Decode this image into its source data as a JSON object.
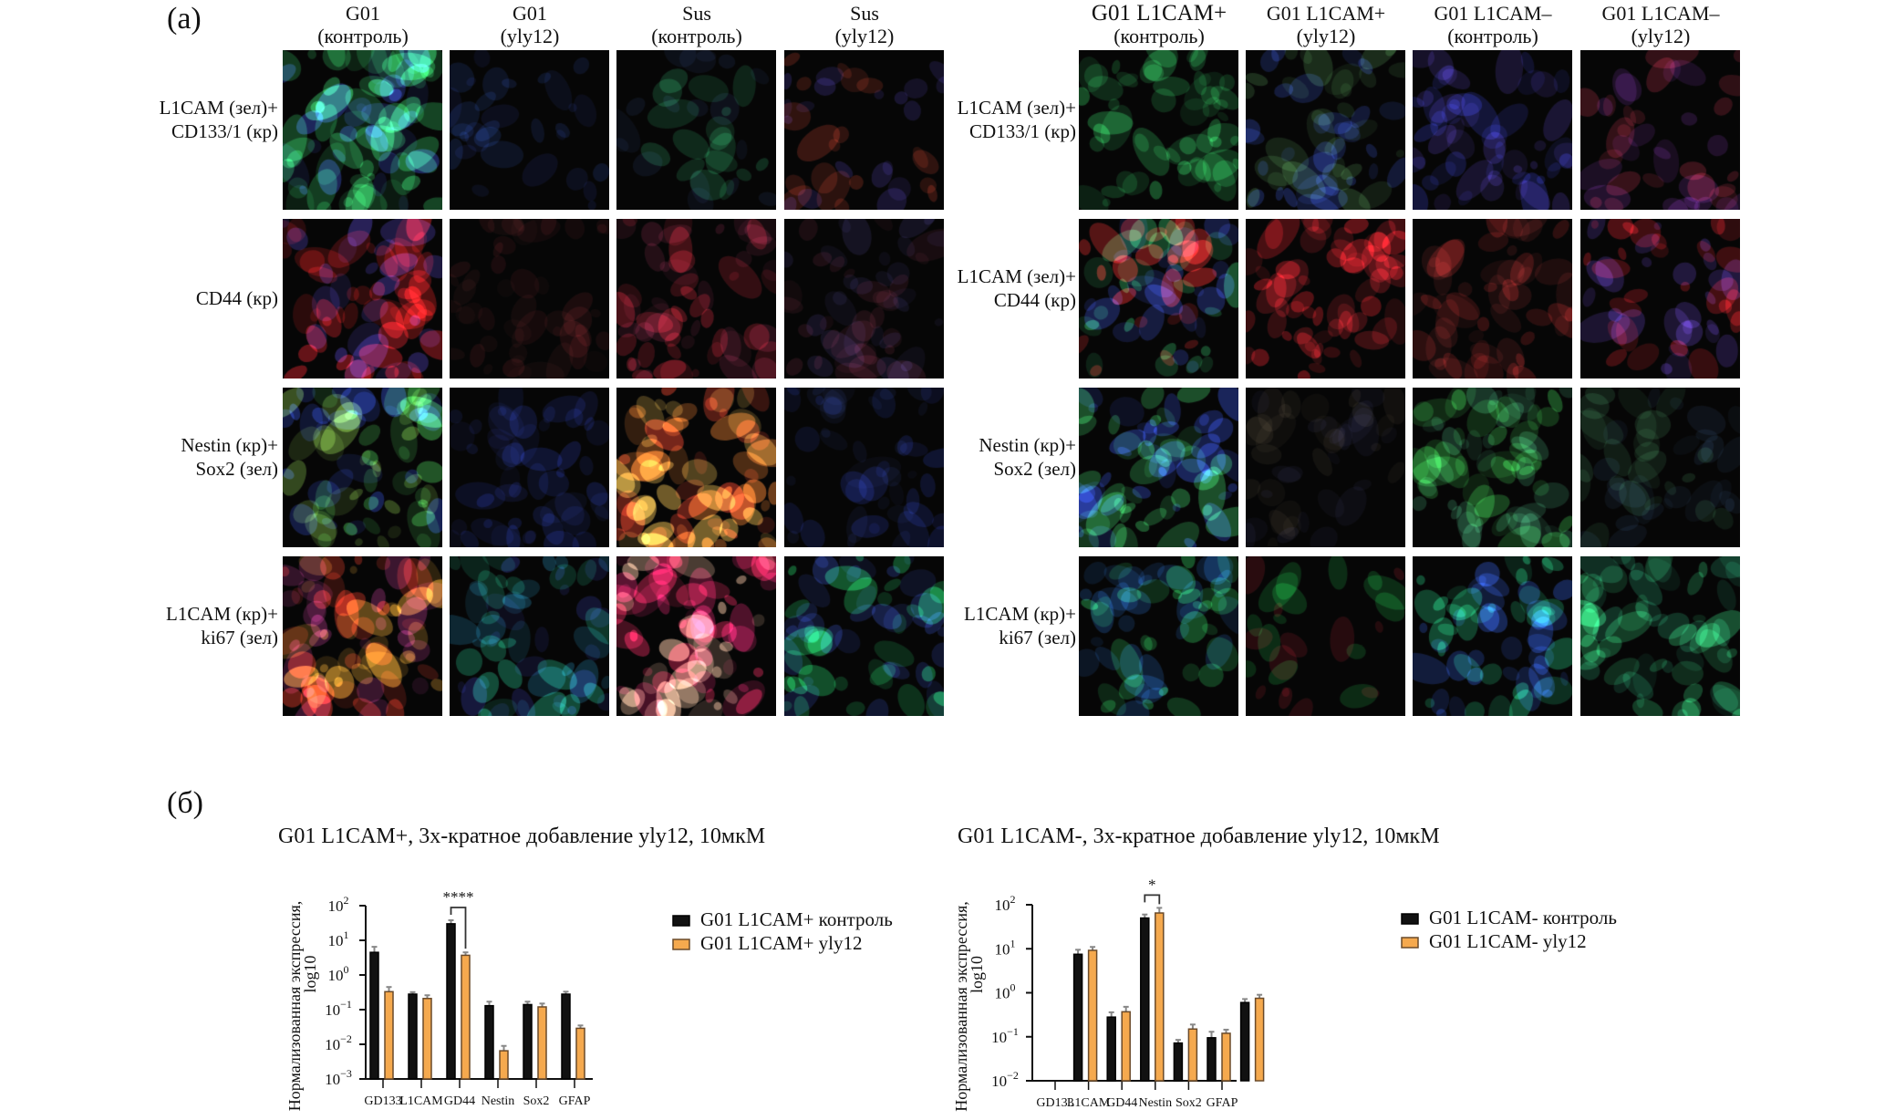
{
  "panel_a": {
    "label": "(а)",
    "left_grid": {
      "columns": [
        {
          "line1": "G01",
          "line2": "(контроль)"
        },
        {
          "line1": "G01",
          "line2": "(yly12)"
        },
        {
          "line1": "Sus",
          "line2": "(контроль)"
        },
        {
          "line1": "Sus",
          "line2": "(yly12)"
        }
      ],
      "rows": [
        {
          "line1": "L1CAM (зел)+",
          "line2": "CD133/1 (кр)"
        },
        {
          "line1": "CD44 (кр)",
          "line2": ""
        },
        {
          "line1": "Nestin (кр)+",
          "line2": "Sox2 (зел)"
        },
        {
          "line1": "L1CAM (кр)+",
          "line2": "ki67 (зел)"
        }
      ],
      "cells": [
        [
          {
            "stains": [
              "#2fae5a",
              "#1e7a3c",
              "#2a3a9a"
            ],
            "density": 0.9
          },
          {
            "stains": [
              "#2a4fb0",
              "#1c2a70"
            ],
            "density": 0.15
          },
          {
            "stains": [
              "#2fae6a",
              "#20305a"
            ],
            "density": 0.2
          },
          {
            "stains": [
              "#c8402a",
              "#4a3aa8"
            ],
            "density": 0.25
          }
        ],
        [
          {
            "stains": [
              "#e0202a",
              "#b01818",
              "#4a3ab0"
            ],
            "density": 0.7
          },
          {
            "stains": [
              "#4a1418",
              "#2a1010"
            ],
            "density": 0.4
          },
          {
            "stains": [
              "#b02030",
              "#5a1a30"
            ],
            "density": 0.55
          },
          {
            "stains": [
              "#4a1a28",
              "#2a2450"
            ],
            "density": 0.5
          }
        ],
        [
          {
            "stains": [
              "#3fae4a",
              "#2840b0",
              "#6a9a3a"
            ],
            "density": 0.8
          },
          {
            "stains": [
              "#1c2a80",
              "#141c50"
            ],
            "density": 0.45
          },
          {
            "stains": [
              "#f08030",
              "#e0402a",
              "#f0c050"
            ],
            "density": 0.8
          },
          {
            "stains": [
              "#1c2a80",
              "#141c40"
            ],
            "density": 0.4
          }
        ],
        [
          {
            "stains": [
              "#c03020",
              "#e0a030",
              "#8a2a6a"
            ],
            "density": 0.85
          },
          {
            "stains": [
              "#20b080",
              "#1a6a8a",
              "#2a3090"
            ],
            "density": 0.6
          },
          {
            "stains": [
              "#f02a60",
              "#f0c0a0",
              "#a01a50"
            ],
            "density": 0.85
          },
          {
            "stains": [
              "#20c060",
              "#2a40a0"
            ],
            "density": 0.6
          }
        ]
      ]
    },
    "right_grid": {
      "columns": [
        {
          "line1": "G01 L1CAM+",
          "line2": "(контроль)"
        },
        {
          "line1": "G01 L1CAM+",
          "line2": "(yly12)"
        },
        {
          "line1": "G01 L1CAM–",
          "line2": "(контроль)"
        },
        {
          "line1": "G01 L1CAM–",
          "line2": "(yly12)"
        }
      ],
      "rows": [
        {
          "line1": "L1CAM (зел)+",
          "line2": "CD133/1 (кр)"
        },
        {
          "line1": "L1CAM (зел)+",
          "line2": "CD44 (кр)"
        },
        {
          "line1": "Nestin (кр)+",
          "line2": "Sox2 (зел)"
        },
        {
          "line1": "L1CAM (кр)+",
          "line2": "ki67 (зел)"
        }
      ],
      "cells": [
        [
          {
            "stains": [
              "#2fbe5a",
              "#1e7a3c"
            ],
            "density": 0.5
          },
          {
            "stains": [
              "#2a40a0",
              "#3a6a3a"
            ],
            "density": 0.55
          },
          {
            "stains": [
              "#2a30a0",
              "#3a2a80"
            ],
            "density": 0.5
          },
          {
            "stains": [
              "#c0304a",
              "#6a2a90"
            ],
            "density": 0.3
          }
        ],
        [
          {
            "stains": [
              "#e02a2a",
              "#30b060",
              "#2a3a9a"
            ],
            "density": 0.7
          },
          {
            "stains": [
              "#e0202a",
              "#901a20"
            ],
            "density": 0.6
          },
          {
            "stains": [
              "#902020",
              "#501818"
            ],
            "density": 0.45
          },
          {
            "stains": [
              "#e0202a",
              "#5a3ab0"
            ],
            "density": 0.45
          }
        ],
        [
          {
            "stains": [
              "#30a050",
              "#2a40b0"
            ],
            "density": 0.75
          },
          {
            "stains": [
              "#302a20",
              "#1a1a30"
            ],
            "density": 0.35
          },
          {
            "stains": [
              "#30a040",
              "#2a6a4a"
            ],
            "density": 0.7
          },
          {
            "stains": [
              "#2a5a3a",
              "#1a2a40"
            ],
            "density": 0.4
          }
        ],
        [
          {
            "stains": [
              "#30d060",
              "#1a4a8a"
            ],
            "density": 0.55
          },
          {
            "stains": [
              "#20d050",
              "#c02030"
            ],
            "density": 0.1
          },
          {
            "stains": [
              "#20b070",
              "#2a50c0"
            ],
            "density": 0.6
          },
          {
            "stains": [
              "#30c070",
              "#1a6a4a"
            ],
            "density": 0.6
          }
        ]
      ]
    }
  },
  "panel_b": {
    "label": "(б)"
  },
  "chart_data": [
    {
      "type": "bar",
      "title": "G01 L1CAM+, 3х-кратное добавление yly12, 10мкМ",
      "ylabel_line1": "Нормализованная экспрессия,",
      "ylabel_line2": "log10",
      "yscale": "log",
      "ylim": [
        0.001,
        100
      ],
      "yticks": [
        "10",
        "10",
        "10",
        "10",
        "10",
        "10"
      ],
      "ytick_exponents": [
        "2",
        "1",
        "0",
        "−1",
        "−2",
        "−3"
      ],
      "categories": [
        "GD133",
        "L1CAM",
        "GD44",
        "Nestin",
        "Sox2",
        "GFAP"
      ],
      "series": [
        {
          "name": "G01 L1CAM+ контроль",
          "color": "#111111",
          "values": [
            4.5,
            0.28,
            30,
            0.13,
            0.14,
            0.28
          ],
          "err_top": [
            6.5,
            0.32,
            38,
            0.17,
            0.17,
            0.33
          ]
        },
        {
          "name": "G01 L1CAM+ yly12",
          "color": "#f5a94e",
          "values": [
            0.33,
            0.21,
            3.7,
            0.0065,
            0.12,
            0.029
          ],
          "err_top": [
            0.45,
            0.26,
            4.5,
            0.009,
            0.15,
            0.035
          ]
        }
      ],
      "annotation": {
        "text": "****",
        "category": "GD44"
      },
      "legend": "right"
    },
    {
      "type": "bar",
      "title": "G01 L1CAM-, 3х-кратное добавление yly12, 10мкМ",
      "ylabel_line1": "Нормализованная экспрессия,",
      "ylabel_line2": "log10",
      "yscale": "log",
      "ylim": [
        0.01,
        100
      ],
      "yticks": [
        "10",
        "10",
        "10",
        "10",
        "10"
      ],
      "ytick_exponents": [
        "2",
        "1",
        "0",
        "−1",
        "−2"
      ],
      "categories": [
        "GD133",
        "L1CAM",
        "GD44",
        "Nestin",
        "Sox2",
        "GFAP",
        ""
      ],
      "series": [
        {
          "name": "G01 L1CAM- контроль",
          "color": "#111111",
          "values": [
            null,
            7.5,
            0.28,
            50,
            0.072,
            0.095,
            0.6
          ],
          "err_top": [
            null,
            9.5,
            0.36,
            60,
            0.085,
            0.13,
            0.72
          ]
        },
        {
          "name": "G01 L1CAM- yly12",
          "color": "#f5a94e",
          "values": [
            null,
            9.2,
            0.37,
            65,
            0.15,
            0.12,
            0.75
          ],
          "err_top": [
            null,
            11,
            0.48,
            85,
            0.19,
            0.145,
            0.9
          ]
        }
      ],
      "annotation": {
        "text": "*",
        "category": "Nestin"
      },
      "legend": "right"
    }
  ]
}
